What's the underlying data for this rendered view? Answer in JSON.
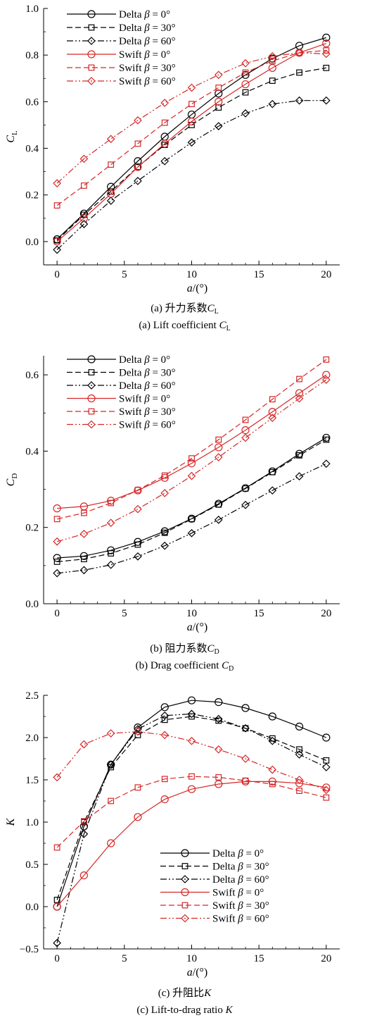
{
  "chart_data": [
    {
      "id": "a",
      "type": "line",
      "ylabel_main": "C",
      "ylabel_sub": "L",
      "xlabel_main": "a",
      "xlabel_unit": "/(°)",
      "caption_cn_prefix": "(a) 升力系数",
      "caption_cn_var": "C",
      "caption_cn_sub": "L",
      "caption_en_prefix": "(a) Lift coefficient ",
      "caption_en_var": "C",
      "caption_en_sub": "L",
      "xlim": [
        -1,
        21
      ],
      "ylim": [
        -0.1,
        1.0
      ],
      "xticks": [
        0,
        5,
        10,
        15,
        20
      ],
      "yticks": [
        0.0,
        0.2,
        0.4,
        0.6,
        0.8,
        1.0
      ],
      "ytick_labels": [
        "0.0",
        "0.2",
        "0.4",
        "0.6",
        "0.8",
        "1.0"
      ],
      "legend_position": "top-left",
      "x": [
        0,
        2,
        4,
        6,
        8,
        10,
        12,
        14,
        16,
        18,
        20
      ],
      "series": [
        {
          "name": "Delta β = 0°",
          "color": "#000000",
          "marker": "circle",
          "dash": "",
          "values": [
            0.01,
            0.12,
            0.235,
            0.345,
            0.45,
            0.545,
            0.635,
            0.715,
            0.785,
            0.84,
            0.875
          ]
        },
        {
          "name": "Delta β = 30°",
          "color": "#000000",
          "marker": "square",
          "dash": "8,4",
          "values": [
            0.005,
            0.115,
            0.215,
            0.32,
            0.415,
            0.5,
            0.575,
            0.64,
            0.69,
            0.725,
            0.745
          ]
        },
        {
          "name": "Delta β = 60°",
          "color": "#000000",
          "marker": "diamond",
          "dash": "9,3,2,3,2,3",
          "values": [
            -0.035,
            0.075,
            0.175,
            0.26,
            0.345,
            0.425,
            0.495,
            0.55,
            0.59,
            0.605,
            0.605
          ]
        },
        {
          "name": "Swift β = 0°",
          "color": "#d62728",
          "marker": "circle",
          "dash": "",
          "values": [
            0.0,
            0.1,
            0.205,
            0.32,
            0.42,
            0.515,
            0.6,
            0.675,
            0.745,
            0.81,
            0.85
          ]
        },
        {
          "name": "Swift β = 30°",
          "color": "#d62728",
          "marker": "square",
          "dash": "8,4",
          "values": [
            0.155,
            0.24,
            0.33,
            0.42,
            0.51,
            0.59,
            0.66,
            0.725,
            0.775,
            0.81,
            0.82
          ]
        },
        {
          "name": "Swift β = 60°",
          "color": "#d62728",
          "marker": "diamond",
          "dash": "9,3,2,3,2,3",
          "values": [
            0.25,
            0.355,
            0.44,
            0.52,
            0.595,
            0.66,
            0.715,
            0.765,
            0.795,
            0.81,
            0.805
          ]
        }
      ]
    },
    {
      "id": "b",
      "type": "line",
      "ylabel_main": "C",
      "ylabel_sub": "D",
      "xlabel_main": "a",
      "xlabel_unit": "/(°)",
      "caption_cn_prefix": "(b) 阻力系数",
      "caption_cn_var": "C",
      "caption_cn_sub": "D",
      "caption_en_prefix": "(b) Drag coefficient ",
      "caption_en_var": "C",
      "caption_en_sub": "D",
      "xlim": [
        -1,
        21
      ],
      "ylim": [
        0.0,
        0.65
      ],
      "xticks": [
        0,
        5,
        10,
        15,
        20
      ],
      "yticks": [
        0.0,
        0.2,
        0.4,
        0.6
      ],
      "ytick_labels": [
        "0.0",
        "0.2",
        "0.4",
        "0.6"
      ],
      "legend_position": "top-left",
      "x": [
        0,
        2,
        4,
        6,
        8,
        10,
        12,
        14,
        16,
        18,
        20
      ],
      "series": [
        {
          "name": "Delta β = 0°",
          "color": "#000000",
          "marker": "circle",
          "dash": "",
          "values": [
            0.12,
            0.125,
            0.14,
            0.162,
            0.19,
            0.223,
            0.262,
            0.303,
            0.347,
            0.393,
            0.435
          ]
        },
        {
          "name": "Delta β = 30°",
          "color": "#000000",
          "marker": "square",
          "dash": "8,4",
          "values": [
            0.11,
            0.117,
            0.132,
            0.155,
            0.186,
            0.222,
            0.26,
            0.302,
            0.345,
            0.389,
            0.43
          ]
        },
        {
          "name": "Delta β = 60°",
          "color": "#000000",
          "marker": "diamond",
          "dash": "9,3,2,3,2,3",
          "values": [
            0.08,
            0.088,
            0.102,
            0.124,
            0.152,
            0.185,
            0.22,
            0.259,
            0.297,
            0.334,
            0.367
          ]
        },
        {
          "name": "Swift β = 0°",
          "color": "#d62728",
          "marker": "circle",
          "dash": "",
          "values": [
            0.25,
            0.255,
            0.27,
            0.297,
            0.33,
            0.368,
            0.41,
            0.455,
            0.503,
            0.552,
            0.6
          ]
        },
        {
          "name": "Swift β = 30°",
          "color": "#d62728",
          "marker": "square",
          "dash": "8,4",
          "values": [
            0.222,
            0.238,
            0.264,
            0.298,
            0.336,
            0.381,
            0.43,
            0.482,
            0.536,
            0.589,
            0.64
          ]
        },
        {
          "name": "Swift β = 60°",
          "color": "#d62728",
          "marker": "diamond",
          "dash": "9,3,2,3,2,3",
          "values": [
            0.163,
            0.183,
            0.212,
            0.248,
            0.29,
            0.335,
            0.384,
            0.435,
            0.487,
            0.538,
            0.587
          ]
        }
      ]
    },
    {
      "id": "c",
      "type": "line",
      "ylabel_main": "K",
      "ylabel_sub": "",
      "xlabel_main": "a",
      "xlabel_unit": "/(°)",
      "caption_cn_prefix": "(c) 升阻比",
      "caption_cn_var": "K",
      "caption_cn_sub": "",
      "caption_en_prefix": "(c) Lift-to-drag ratio ",
      "caption_en_var": "K",
      "caption_en_sub": "",
      "xlim": [
        -1,
        21
      ],
      "ylim": [
        -0.5,
        2.5
      ],
      "xticks": [
        0,
        5,
        10,
        15,
        20
      ],
      "yticks": [
        -0.5,
        0.0,
        0.5,
        1.0,
        1.5,
        2.0,
        2.5
      ],
      "ytick_labels": [
        "−0.5",
        "0.0",
        "0.5",
        "1.0",
        "1.5",
        "2.0",
        "2.5"
      ],
      "legend_position": "lower-center",
      "x": [
        0,
        2,
        4,
        6,
        8,
        10,
        12,
        14,
        16,
        18,
        20
      ],
      "series": [
        {
          "name": "Delta β = 0°",
          "color": "#000000",
          "marker": "circle",
          "dash": "",
          "values": [
            0.0,
            0.95,
            1.68,
            2.12,
            2.36,
            2.44,
            2.42,
            2.35,
            2.25,
            2.13,
            2.0
          ]
        },
        {
          "name": "Delta β = 30°",
          "color": "#000000",
          "marker": "square",
          "dash": "8,4",
          "values": [
            0.08,
            1.0,
            1.65,
            2.03,
            2.21,
            2.25,
            2.2,
            2.11,
            1.99,
            1.86,
            1.73
          ]
        },
        {
          "name": "Delta β = 60°",
          "color": "#000000",
          "marker": "diamond",
          "dash": "9,3,2,3,2,3",
          "values": [
            -0.43,
            0.86,
            1.68,
            2.1,
            2.26,
            2.28,
            2.22,
            2.11,
            1.96,
            1.8,
            1.65
          ]
        },
        {
          "name": "Swift β = 0°",
          "color": "#d62728",
          "marker": "circle",
          "dash": "",
          "values": [
            0.0,
            0.37,
            0.75,
            1.06,
            1.27,
            1.39,
            1.45,
            1.48,
            1.48,
            1.46,
            1.41
          ]
        },
        {
          "name": "Swift β = 30°",
          "color": "#d62728",
          "marker": "square",
          "dash": "8,4",
          "values": [
            0.7,
            1.01,
            1.25,
            1.41,
            1.51,
            1.54,
            1.53,
            1.49,
            1.45,
            1.37,
            1.29
          ]
        },
        {
          "name": "Swift β = 60°",
          "color": "#d62728",
          "marker": "diamond",
          "dash": "9,3,2,3,2,3",
          "values": [
            1.53,
            1.92,
            2.05,
            2.07,
            2.03,
            1.96,
            1.86,
            1.75,
            1.62,
            1.5,
            1.38
          ]
        }
      ]
    }
  ]
}
